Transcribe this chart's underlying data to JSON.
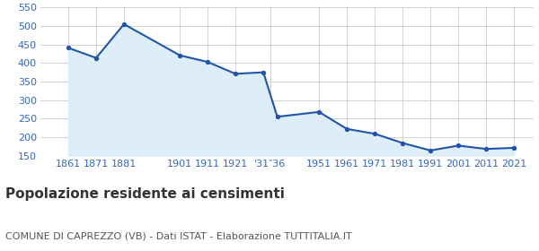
{
  "years": [
    1861,
    1871,
    1881,
    1901,
    1911,
    1921,
    1931,
    1936,
    1951,
    1961,
    1971,
    1981,
    1991,
    2001,
    2011,
    2021
  ],
  "population": [
    441,
    414,
    505,
    421,
    403,
    371,
    375,
    255,
    268,
    222,
    209,
    184,
    164,
    177,
    168,
    171
  ],
  "line_color": "#2255aa",
  "fill_color": "#ddeef8",
  "marker_color": "#2255aa",
  "bg_color": "#ffffff",
  "grid_color": "#cccccc",
  "ylim": [
    150,
    550
  ],
  "yticks": [
    150,
    200,
    250,
    300,
    350,
    400,
    450,
    500,
    550
  ],
  "xlim": [
    1851,
    2028
  ],
  "title": "Popolazione residente ai censimenti",
  "subtitle": "COMUNE DI CAPREZZO (VB) - Dati ISTAT - Elaborazione TUTTITALIA.IT",
  "title_fontsize": 11,
  "subtitle_fontsize": 8,
  "title_color": "#333333",
  "subtitle_color": "#555555",
  "axis_label_color": "#3366bb",
  "axis_tick_fontsize": 8,
  "x_tick_positions": [
    1861,
    1871,
    1881,
    1901,
    1911,
    1921,
    1933.5,
    1951,
    1961,
    1971,
    1981,
    1991,
    2001,
    2011,
    2021
  ],
  "x_tick_labels": [
    "1861",
    "1871",
    "1881",
    "1901",
    "1911",
    "1921",
    "'31‶36",
    "1951",
    "1961",
    "1971",
    "1981",
    "1991",
    "2001",
    "2011",
    "2021"
  ]
}
